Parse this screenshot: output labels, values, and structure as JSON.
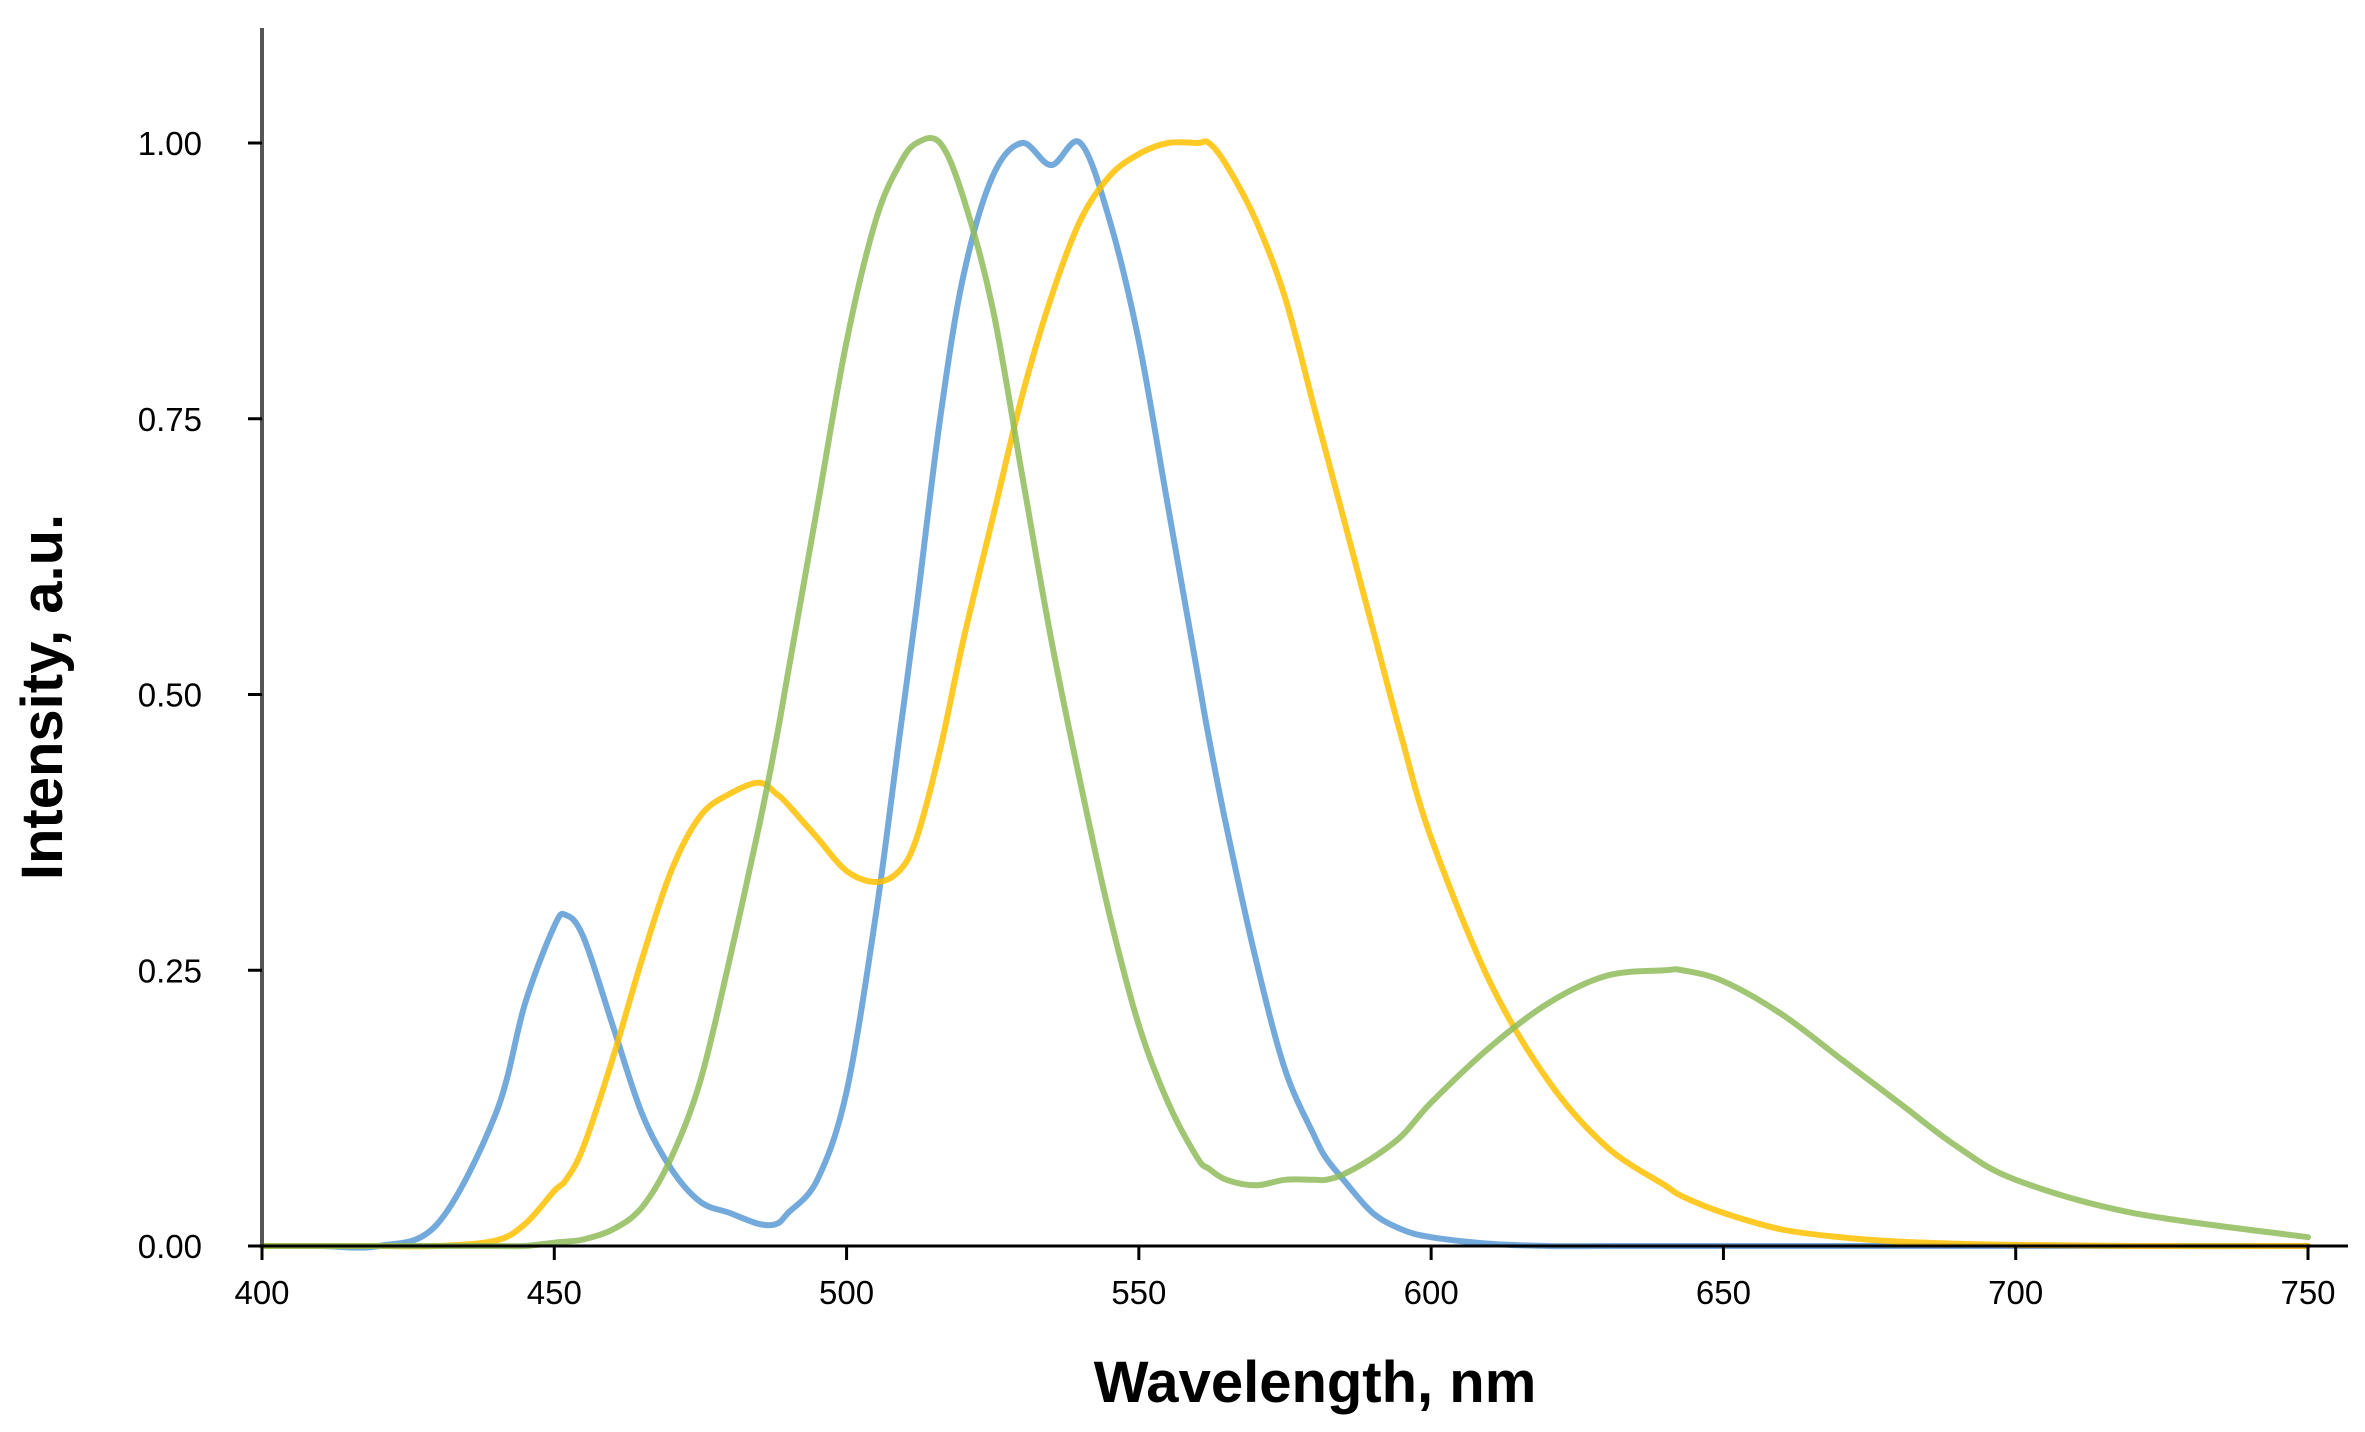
{
  "chart_data": {
    "type": "line",
    "xlabel": "Wavelength, nm",
    "ylabel": "Intensity, a.u.",
    "xlim": [
      400,
      750
    ],
    "ylim": [
      0,
      1.1
    ],
    "xticks": [
      400,
      450,
      500,
      550,
      600,
      650,
      700,
      750
    ],
    "xtick_labels": [
      "400",
      "450",
      "500",
      "550",
      "600",
      "650",
      "700",
      "750"
    ],
    "yticks": [
      0,
      0.25,
      0.5,
      0.75,
      1.0
    ],
    "ytick_labels": [
      "0.00",
      "0.25",
      "0.50",
      "0.75",
      "1.00"
    ],
    "grid": false,
    "legend": "none",
    "x": [
      400,
      410,
      420,
      430,
      440,
      445,
      450,
      452,
      455,
      460,
      465,
      470,
      475,
      480,
      485,
      488,
      490,
      495,
      500,
      505,
      509,
      512,
      516,
      520,
      525,
      530,
      535,
      540,
      545,
      550,
      555,
      560,
      562,
      565,
      570,
      575,
      580,
      582,
      585,
      590,
      595,
      600,
      610,
      620,
      630,
      640,
      643,
      650,
      660,
      670,
      680,
      690,
      700,
      720,
      750
    ],
    "series": [
      {
        "color": "#5b9bd5",
        "values": [
          0.0,
          0.0,
          0.0,
          0.02,
          0.12,
          0.22,
          0.29,
          0.3,
          0.28,
          0.2,
          0.12,
          0.07,
          0.04,
          0.03,
          0.02,
          0.02,
          0.03,
          0.06,
          0.14,
          0.3,
          0.46,
          0.58,
          0.75,
          0.88,
          0.97,
          1.0,
          0.98,
          1.0,
          0.93,
          0.82,
          0.67,
          0.52,
          0.46,
          0.38,
          0.26,
          0.16,
          0.1,
          0.08,
          0.06,
          0.03,
          0.015,
          0.008,
          0.002,
          0.0,
          0.0,
          0.0,
          0.0,
          0.0,
          0.0,
          0.0,
          0.0,
          0.0,
          0.0,
          0.0,
          0.0
        ]
      },
      {
        "color": "#ffc000",
        "values": [
          0.0,
          0.0,
          0.0,
          0.0,
          0.005,
          0.02,
          0.05,
          0.06,
          0.09,
          0.17,
          0.26,
          0.34,
          0.39,
          0.41,
          0.42,
          0.41,
          0.4,
          0.37,
          0.34,
          0.33,
          0.34,
          0.37,
          0.45,
          0.55,
          0.66,
          0.77,
          0.86,
          0.93,
          0.97,
          0.99,
          1.0,
          1.0,
          1.0,
          0.98,
          0.93,
          0.86,
          0.76,
          0.72,
          0.66,
          0.56,
          0.46,
          0.37,
          0.24,
          0.15,
          0.09,
          0.055,
          0.045,
          0.03,
          0.015,
          0.008,
          0.004,
          0.002,
          0.001,
          0.0,
          0.0
        ]
      },
      {
        "color": "#8fbc5a",
        "values": [
          0.0,
          0.0,
          0.0,
          0.0,
          0.0,
          0.0,
          0.003,
          0.004,
          0.006,
          0.015,
          0.035,
          0.08,
          0.15,
          0.26,
          0.38,
          0.46,
          0.52,
          0.67,
          0.82,
          0.93,
          0.98,
          1.0,
          1.0,
          0.95,
          0.85,
          0.7,
          0.55,
          0.42,
          0.3,
          0.2,
          0.13,
          0.08,
          0.07,
          0.06,
          0.055,
          0.06,
          0.06,
          0.06,
          0.065,
          0.08,
          0.1,
          0.13,
          0.18,
          0.22,
          0.245,
          0.25,
          0.25,
          0.24,
          0.21,
          0.17,
          0.13,
          0.09,
          0.06,
          0.03,
          0.008
        ]
      }
    ]
  }
}
